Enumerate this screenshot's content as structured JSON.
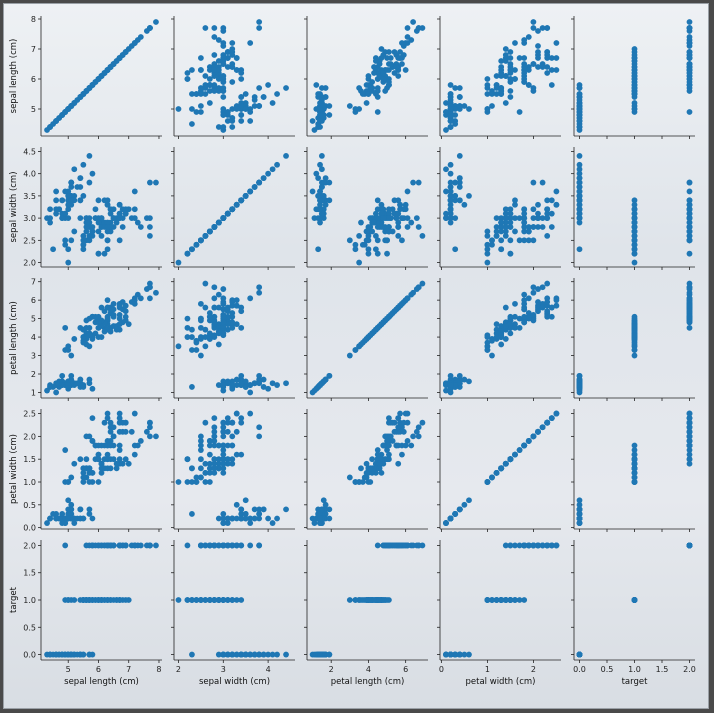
{
  "chart_data": {
    "type": "scatter",
    "variables": [
      "sepal length (cm)",
      "sepal width (cm)",
      "petal length (cm)",
      "petal width (cm)",
      "target"
    ],
    "axis_ticks": {
      "sepal length (cm)": [
        5,
        6,
        7,
        8
      ],
      "sepal width (cm)": [
        2.0,
        2.5,
        3.0,
        3.5,
        4.0,
        4.5
      ],
      "petal length (cm)": [
        1,
        2,
        3,
        4,
        5,
        6,
        7
      ],
      "petal width (cm)": [
        0.0,
        0.5,
        1.0,
        1.5,
        2.0,
        2.5
      ],
      "target": [
        0.0,
        0.5,
        1.0,
        1.5,
        2.0
      ]
    },
    "x_tick_labels": {
      "sepal length (cm)": [
        "5",
        "6",
        "7",
        "8"
      ],
      "sepal width (cm)": [
        "2",
        "3",
        "4"
      ],
      "petal length (cm)": [
        "2",
        "4",
        "6"
      ],
      "petal width (cm)": [
        "0",
        "1",
        "2"
      ],
      "target": [
        "0.0",
        "0.5",
        "1.0",
        "1.5",
        "2.0"
      ]
    },
    "x_tick_values": {
      "sepal length (cm)": [
        5,
        6,
        7,
        8
      ],
      "sepal width (cm)": [
        2,
        3,
        4
      ],
      "petal length (cm)": [
        2,
        4,
        6
      ],
      "petal width (cm)": [
        0,
        1,
        2
      ],
      "target": [
        0.0,
        0.5,
        1.0,
        1.5,
        2.0
      ]
    },
    "y_tick_labels": {
      "sepal length (cm)": [
        "5",
        "6",
        "7",
        "8"
      ],
      "sepal width (cm)": [
        "2.0",
        "2.5",
        "3.0",
        "3.5",
        "4.0",
        "4.5"
      ],
      "petal length (cm)": [
        "1",
        "2",
        "3",
        "4",
        "5",
        "6",
        "7"
      ],
      "petal width (cm)": [
        "0.0",
        "0.5",
        "1.0",
        "1.5",
        "2.0",
        "2.5"
      ],
      "target": [
        "0.0",
        "0.5",
        "1.0",
        "1.5",
        "2.0"
      ]
    },
    "ranges": {
      "sepal length (cm)": [
        4.1,
        8.1
      ],
      "sepal width (cm)": [
        1.9,
        4.6
      ],
      "petal length (cm)": [
        0.7,
        7.2
      ],
      "petal width (cm)": [
        -0.03,
        2.6
      ],
      "target": [
        -0.1,
        2.1
      ]
    },
    "marker_color": "#1f77b4",
    "grid": false,
    "rows": [
      [
        5.1,
        3.5,
        1.4,
        0.2,
        0
      ],
      [
        4.9,
        3.0,
        1.4,
        0.2,
        0
      ],
      [
        4.7,
        3.2,
        1.3,
        0.2,
        0
      ],
      [
        4.6,
        3.1,
        1.5,
        0.2,
        0
      ],
      [
        5.0,
        3.6,
        1.4,
        0.2,
        0
      ],
      [
        5.4,
        3.9,
        1.7,
        0.4,
        0
      ],
      [
        4.6,
        3.4,
        1.4,
        0.3,
        0
      ],
      [
        5.0,
        3.4,
        1.5,
        0.2,
        0
      ],
      [
        4.4,
        2.9,
        1.4,
        0.2,
        0
      ],
      [
        4.9,
        3.1,
        1.5,
        0.1,
        0
      ],
      [
        5.4,
        3.7,
        1.5,
        0.2,
        0
      ],
      [
        4.8,
        3.4,
        1.6,
        0.2,
        0
      ],
      [
        4.8,
        3.0,
        1.4,
        0.1,
        0
      ],
      [
        4.3,
        3.0,
        1.1,
        0.1,
        0
      ],
      [
        5.8,
        4.0,
        1.2,
        0.2,
        0
      ],
      [
        5.7,
        4.4,
        1.5,
        0.4,
        0
      ],
      [
        5.4,
        3.9,
        1.3,
        0.4,
        0
      ],
      [
        5.1,
        3.5,
        1.4,
        0.3,
        0
      ],
      [
        5.7,
        3.8,
        1.7,
        0.3,
        0
      ],
      [
        5.1,
        3.8,
        1.5,
        0.3,
        0
      ],
      [
        5.4,
        3.4,
        1.7,
        0.2,
        0
      ],
      [
        5.1,
        3.7,
        1.5,
        0.4,
        0
      ],
      [
        4.6,
        3.6,
        1.0,
        0.2,
        0
      ],
      [
        5.1,
        3.3,
        1.7,
        0.5,
        0
      ],
      [
        4.8,
        3.4,
        1.9,
        0.2,
        0
      ],
      [
        5.0,
        3.0,
        1.6,
        0.2,
        0
      ],
      [
        5.0,
        3.4,
        1.6,
        0.4,
        0
      ],
      [
        5.2,
        3.5,
        1.5,
        0.2,
        0
      ],
      [
        5.2,
        3.4,
        1.4,
        0.2,
        0
      ],
      [
        4.7,
        3.2,
        1.6,
        0.2,
        0
      ],
      [
        4.8,
        3.1,
        1.6,
        0.2,
        0
      ],
      [
        5.4,
        3.4,
        1.5,
        0.4,
        0
      ],
      [
        5.2,
        4.1,
        1.5,
        0.1,
        0
      ],
      [
        5.5,
        4.2,
        1.4,
        0.2,
        0
      ],
      [
        4.9,
        3.1,
        1.5,
        0.2,
        0
      ],
      [
        5.0,
        3.2,
        1.2,
        0.2,
        0
      ],
      [
        5.5,
        3.5,
        1.3,
        0.2,
        0
      ],
      [
        4.9,
        3.6,
        1.4,
        0.1,
        0
      ],
      [
        4.4,
        3.0,
        1.3,
        0.2,
        0
      ],
      [
        5.1,
        3.4,
        1.5,
        0.2,
        0
      ],
      [
        5.0,
        3.5,
        1.3,
        0.3,
        0
      ],
      [
        4.5,
        2.3,
        1.3,
        0.3,
        0
      ],
      [
        4.4,
        3.2,
        1.3,
        0.2,
        0
      ],
      [
        5.0,
        3.5,
        1.6,
        0.6,
        0
      ],
      [
        5.1,
        3.8,
        1.9,
        0.4,
        0
      ],
      [
        4.8,
        3.0,
        1.4,
        0.3,
        0
      ],
      [
        5.1,
        3.8,
        1.6,
        0.2,
        0
      ],
      [
        4.6,
        3.2,
        1.4,
        0.2,
        0
      ],
      [
        5.3,
        3.7,
        1.5,
        0.2,
        0
      ],
      [
        5.0,
        3.3,
        1.4,
        0.2,
        0
      ],
      [
        7.0,
        3.2,
        4.7,
        1.4,
        1
      ],
      [
        6.4,
        3.2,
        4.5,
        1.5,
        1
      ],
      [
        6.9,
        3.1,
        4.9,
        1.5,
        1
      ],
      [
        5.5,
        2.3,
        4.0,
        1.3,
        1
      ],
      [
        6.5,
        2.8,
        4.6,
        1.5,
        1
      ],
      [
        5.7,
        2.8,
        4.5,
        1.3,
        1
      ],
      [
        6.3,
        3.3,
        4.7,
        1.6,
        1
      ],
      [
        4.9,
        2.4,
        3.3,
        1.0,
        1
      ],
      [
        6.6,
        2.9,
        4.6,
        1.3,
        1
      ],
      [
        5.2,
        2.7,
        3.9,
        1.4,
        1
      ],
      [
        5.0,
        2.0,
        3.5,
        1.0,
        1
      ],
      [
        5.9,
        3.0,
        4.2,
        1.5,
        1
      ],
      [
        6.0,
        2.2,
        4.0,
        1.0,
        1
      ],
      [
        6.1,
        2.9,
        4.7,
        1.4,
        1
      ],
      [
        5.6,
        2.9,
        3.6,
        1.3,
        1
      ],
      [
        6.7,
        3.1,
        4.4,
        1.4,
        1
      ],
      [
        5.6,
        3.0,
        4.5,
        1.5,
        1
      ],
      [
        5.8,
        2.7,
        4.1,
        1.0,
        1
      ],
      [
        6.2,
        2.2,
        4.5,
        1.5,
        1
      ],
      [
        5.6,
        2.5,
        3.9,
        1.1,
        1
      ],
      [
        5.9,
        3.2,
        4.8,
        1.8,
        1
      ],
      [
        6.1,
        2.8,
        4.0,
        1.3,
        1
      ],
      [
        6.3,
        2.5,
        4.9,
        1.5,
        1
      ],
      [
        6.1,
        2.8,
        4.7,
        1.2,
        1
      ],
      [
        6.4,
        2.9,
        4.3,
        1.3,
        1
      ],
      [
        6.6,
        3.0,
        4.4,
        1.4,
        1
      ],
      [
        6.8,
        2.8,
        4.8,
        1.4,
        1
      ],
      [
        6.7,
        3.0,
        5.0,
        1.7,
        1
      ],
      [
        6.0,
        2.9,
        4.5,
        1.5,
        1
      ],
      [
        5.7,
        2.6,
        3.5,
        1.0,
        1
      ],
      [
        5.5,
        2.4,
        3.8,
        1.1,
        1
      ],
      [
        5.5,
        2.4,
        3.7,
        1.0,
        1
      ],
      [
        5.8,
        2.7,
        3.9,
        1.2,
        1
      ],
      [
        6.0,
        2.7,
        5.1,
        1.6,
        1
      ],
      [
        5.4,
        3.0,
        4.5,
        1.5,
        1
      ],
      [
        6.0,
        3.4,
        4.5,
        1.6,
        1
      ],
      [
        6.7,
        3.1,
        4.7,
        1.5,
        1
      ],
      [
        6.3,
        2.3,
        4.4,
        1.3,
        1
      ],
      [
        5.6,
        3.0,
        4.1,
        1.3,
        1
      ],
      [
        5.5,
        2.5,
        4.0,
        1.3,
        1
      ],
      [
        5.5,
        2.6,
        4.4,
        1.2,
        1
      ],
      [
        6.1,
        3.0,
        4.6,
        1.4,
        1
      ],
      [
        5.8,
        2.6,
        4.0,
        1.2,
        1
      ],
      [
        5.0,
        2.3,
        3.3,
        1.0,
        1
      ],
      [
        5.6,
        2.7,
        4.2,
        1.3,
        1
      ],
      [
        5.7,
        3.0,
        4.2,
        1.2,
        1
      ],
      [
        5.7,
        2.9,
        4.2,
        1.3,
        1
      ],
      [
        6.2,
        2.9,
        4.3,
        1.3,
        1
      ],
      [
        5.1,
        2.5,
        3.0,
        1.1,
        1
      ],
      [
        5.7,
        2.8,
        4.1,
        1.3,
        1
      ],
      [
        6.3,
        3.3,
        6.0,
        2.5,
        2
      ],
      [
        5.8,
        2.7,
        5.1,
        1.9,
        2
      ],
      [
        7.1,
        3.0,
        5.9,
        2.1,
        2
      ],
      [
        6.3,
        2.9,
        5.6,
        1.8,
        2
      ],
      [
        6.5,
        3.0,
        5.8,
        2.2,
        2
      ],
      [
        7.6,
        3.0,
        6.6,
        2.1,
        2
      ],
      [
        4.9,
        2.5,
        4.5,
        1.7,
        2
      ],
      [
        7.3,
        2.9,
        6.3,
        1.8,
        2
      ],
      [
        6.7,
        2.5,
        5.8,
        1.8,
        2
      ],
      [
        7.2,
        3.6,
        6.1,
        2.5,
        2
      ],
      [
        6.5,
        3.2,
        5.1,
        2.0,
        2
      ],
      [
        6.4,
        2.7,
        5.3,
        1.9,
        2
      ],
      [
        6.8,
        3.0,
        5.5,
        2.1,
        2
      ],
      [
        5.7,
        2.5,
        5.0,
        2.0,
        2
      ],
      [
        5.8,
        2.8,
        5.1,
        2.4,
        2
      ],
      [
        6.4,
        3.2,
        5.3,
        2.3,
        2
      ],
      [
        6.5,
        3.0,
        5.5,
        1.8,
        2
      ],
      [
        7.7,
        3.8,
        6.7,
        2.2,
        2
      ],
      [
        7.7,
        2.6,
        6.9,
        2.3,
        2
      ],
      [
        6.0,
        2.2,
        5.0,
        1.5,
        2
      ],
      [
        6.9,
        3.2,
        5.7,
        2.3,
        2
      ],
      [
        5.6,
        2.8,
        4.9,
        2.0,
        2
      ],
      [
        7.7,
        2.8,
        6.7,
        2.0,
        2
      ],
      [
        6.3,
        2.7,
        4.9,
        1.8,
        2
      ],
      [
        6.7,
        3.3,
        5.7,
        2.1,
        2
      ],
      [
        7.2,
        3.2,
        6.0,
        1.8,
        2
      ],
      [
        6.2,
        2.8,
        4.8,
        1.8,
        2
      ],
      [
        6.1,
        3.0,
        4.9,
        1.8,
        2
      ],
      [
        6.4,
        2.8,
        5.6,
        2.1,
        2
      ],
      [
        7.2,
        3.0,
        5.8,
        1.6,
        2
      ],
      [
        7.4,
        2.8,
        6.1,
        1.9,
        2
      ],
      [
        7.9,
        3.8,
        6.4,
        2.0,
        2
      ],
      [
        6.4,
        2.8,
        5.6,
        2.2,
        2
      ],
      [
        6.3,
        2.8,
        5.1,
        1.5,
        2
      ],
      [
        6.1,
        2.6,
        5.6,
        1.4,
        2
      ],
      [
        7.7,
        3.0,
        6.1,
        2.3,
        2
      ],
      [
        6.3,
        3.4,
        5.6,
        2.4,
        2
      ],
      [
        6.4,
        3.1,
        5.5,
        1.8,
        2
      ],
      [
        6.0,
        3.0,
        4.8,
        1.8,
        2
      ],
      [
        6.9,
        3.1,
        5.4,
        2.1,
        2
      ],
      [
        6.7,
        3.1,
        5.6,
        2.4,
        2
      ],
      [
        6.9,
        3.1,
        5.1,
        2.3,
        2
      ],
      [
        5.8,
        2.7,
        5.1,
        1.9,
        2
      ],
      [
        6.8,
        3.2,
        5.9,
        2.3,
        2
      ],
      [
        6.7,
        3.3,
        5.7,
        2.5,
        2
      ],
      [
        6.7,
        3.0,
        5.2,
        2.3,
        2
      ],
      [
        6.3,
        2.5,
        5.0,
        1.9,
        2
      ],
      [
        6.5,
        3.0,
        5.2,
        2.0,
        2
      ],
      [
        6.2,
        3.4,
        5.4,
        2.3,
        2
      ],
      [
        5.9,
        3.0,
        5.1,
        1.8,
        2
      ]
    ]
  }
}
